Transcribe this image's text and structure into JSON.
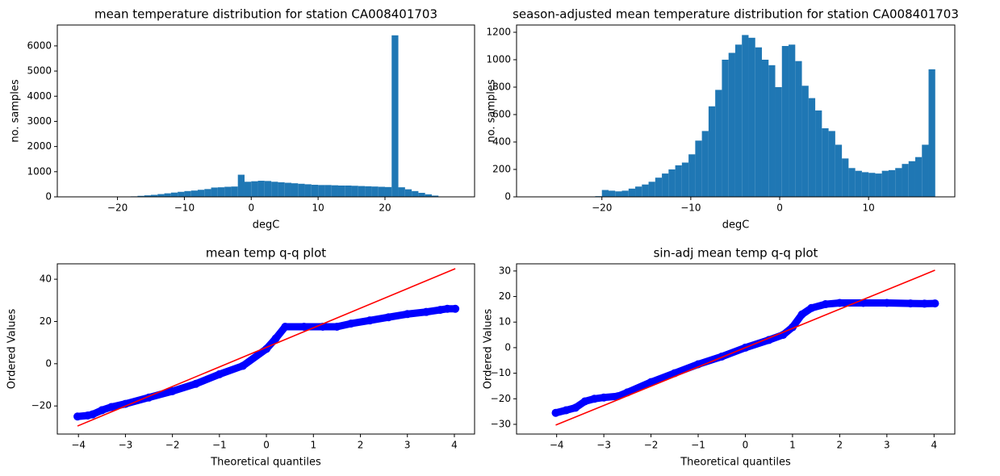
{
  "chart_data": [
    {
      "type": "histogram",
      "title": "mean temperature distribution for station CA008401703",
      "x_label": "degC",
      "y_label": "no. samples",
      "color": "#1f77b4",
      "bins": [
        -22,
        -21,
        -20,
        -19,
        -18,
        -17,
        -16,
        -15,
        -14,
        -13,
        -12,
        -11,
        -10,
        -9,
        -8,
        -7,
        -6,
        -5,
        -4,
        -3,
        -2,
        -1,
        0,
        1,
        2,
        3,
        4,
        5,
        6,
        7,
        8,
        9,
        10,
        11,
        12,
        13,
        14,
        15,
        16,
        17,
        18,
        19,
        20,
        21,
        22,
        23,
        24,
        25,
        26,
        27,
        28
      ],
      "values": [
        3,
        5,
        8,
        12,
        20,
        40,
        60,
        80,
        110,
        140,
        170,
        200,
        230,
        250,
        280,
        310,
        370,
        380,
        400,
        410,
        880,
        600,
        620,
        640,
        630,
        600,
        580,
        560,
        540,
        520,
        500,
        480,
        470,
        470,
        460,
        450,
        450,
        440,
        430,
        420,
        410,
        400,
        390,
        6420,
        380,
        300,
        230,
        160,
        100,
        50
      ],
      "xlim": [
        -29,
        33.4
      ],
      "ylim": [
        0,
        6830
      ],
      "xticks": [
        {
          "value": -20,
          "label": "−20"
        },
        {
          "value": -10,
          "label": "−10"
        },
        0,
        10,
        20
      ],
      "yticks": [
        0,
        1000,
        2000,
        3000,
        4000,
        5000,
        6000
      ]
    },
    {
      "type": "histogram",
      "title": "season-adjusted mean temperature distribution for station CA008401703",
      "x_label": "degC",
      "y_label": "no. samples",
      "color": "#1f77b4",
      "bins": [
        -21.5,
        -20.75,
        -20,
        -19.25,
        -18.5,
        -17.75,
        -17,
        -16.25,
        -15.5,
        -14.75,
        -14,
        -13.25,
        -12.5,
        -11.75,
        -11,
        -10.25,
        -9.5,
        -8.75,
        -8,
        -7.25,
        -6.5,
        -5.75,
        -5,
        -4.25,
        -3.5,
        -2.75,
        -2,
        -1.25,
        -0.5,
        0.25,
        1,
        1.75,
        2.5,
        3.25,
        4,
        4.75,
        5.5,
        6.25,
        7,
        7.75,
        8.5,
        9.25,
        10,
        10.75,
        11.5,
        12.25,
        13,
        13.75,
        14.5,
        15.25,
        16,
        16.75,
        17.5
      ],
      "values": [
        2,
        5,
        50,
        45,
        40,
        45,
        60,
        75,
        90,
        110,
        140,
        170,
        200,
        230,
        250,
        310,
        410,
        480,
        660,
        780,
        1000,
        1050,
        1110,
        1180,
        1160,
        1090,
        1000,
        960,
        800,
        1100,
        1110,
        990,
        810,
        720,
        630,
        500,
        480,
        380,
        280,
        210,
        190,
        180,
        175,
        170,
        190,
        195,
        210,
        240,
        260,
        290,
        380,
        930
      ],
      "xlim": [
        -29.6,
        19.7
      ],
      "ylim": [
        0,
        1253
      ],
      "xticks": [
        {
          "value": -20,
          "label": "−20"
        },
        {
          "value": -10,
          "label": "−10"
        },
        0,
        10
      ],
      "yticks": [
        0,
        200,
        400,
        600,
        800,
        1000,
        1200
      ]
    },
    {
      "type": "scatter",
      "title": "mean temp q-q plot",
      "x_label": "Theoretical quantiles",
      "y_label": "Ordered Values",
      "series": [
        {
          "kind": "points",
          "color": "#0000ff",
          "x": [
            -4.02,
            -3.8,
            -3.7,
            -3.5,
            -3.3,
            -3,
            -2.5,
            -2,
            -1.5,
            -1,
            -0.5,
            0,
            0.2,
            0.4,
            0.8,
            1.2,
            1.5,
            1.8,
            2.2,
            2.6,
            3,
            3.4,
            3.7,
            3.85,
            4.02
          ],
          "values": [
            -25,
            -24.5,
            -24,
            -22,
            -20.5,
            -19,
            -16,
            -13,
            -9.5,
            -5,
            -1,
            7,
            12,
            17.5,
            17.5,
            17.5,
            17.5,
            19,
            20.5,
            22,
            23.5,
            24.5,
            25.5,
            26,
            26
          ]
        },
        {
          "kind": "line",
          "color": "#ff0000",
          "x": [
            -4.02,
            4.02
          ],
          "values": [
            -29.5,
            45
          ]
        }
      ],
      "xlim": [
        -4.45,
        4.43
      ],
      "ylim": [
        -33.3,
        47.3
      ],
      "xticks": [
        {
          "value": -4,
          "label": "−4"
        },
        {
          "value": -3,
          "label": "−3"
        },
        {
          "value": -2,
          "label": "−2"
        },
        {
          "value": -1,
          "label": "−1"
        },
        0,
        1,
        2,
        3,
        4
      ],
      "yticks": [
        {
          "value": -20,
          "label": "−20"
        },
        0,
        20,
        40
      ]
    },
    {
      "type": "scatter",
      "title": "sin-adj mean temp q-q plot",
      "x_label": "Theoretical quantiles",
      "y_label": "Ordered Values",
      "series": [
        {
          "kind": "points",
          "color": "#0000ff",
          "x": [
            -4.02,
            -3.8,
            -3.6,
            -3.4,
            -3.2,
            -3,
            -2.7,
            -2.5,
            -2,
            -1.5,
            -1,
            -0.5,
            0,
            0.5,
            0.8,
            1,
            1.2,
            1.4,
            1.7,
            2,
            2.5,
            3,
            3.5,
            3.8,
            4.02
          ],
          "values": [
            -25.5,
            -24.5,
            -23.5,
            -21,
            -20,
            -19.5,
            -19,
            -17.5,
            -13.5,
            -10,
            -6.5,
            -3.5,
            0,
            3,
            5,
            8,
            13,
            15.5,
            17,
            17.5,
            17.5,
            17.5,
            17.3,
            17.2,
            17.3
          ]
        },
        {
          "kind": "line",
          "color": "#ff0000",
          "x": [
            -4.02,
            4.02
          ],
          "values": [
            -30.3,
            30.3
          ]
        }
      ],
      "xlim": [
        -4.85,
        4.44
      ],
      "ylim": [
        -33.8,
        32.8
      ],
      "xticks": [
        {
          "value": -4,
          "label": "−4"
        },
        {
          "value": -3,
          "label": "−3"
        },
        {
          "value": -2,
          "label": "−2"
        },
        {
          "value": -1,
          "label": "−1"
        },
        0,
        1,
        2,
        3,
        4
      ],
      "yticks": [
        {
          "value": -30,
          "label": "−30"
        },
        {
          "value": -20,
          "label": "−20"
        },
        {
          "value": -10,
          "label": "−10"
        },
        0,
        10,
        20,
        30
      ]
    }
  ]
}
